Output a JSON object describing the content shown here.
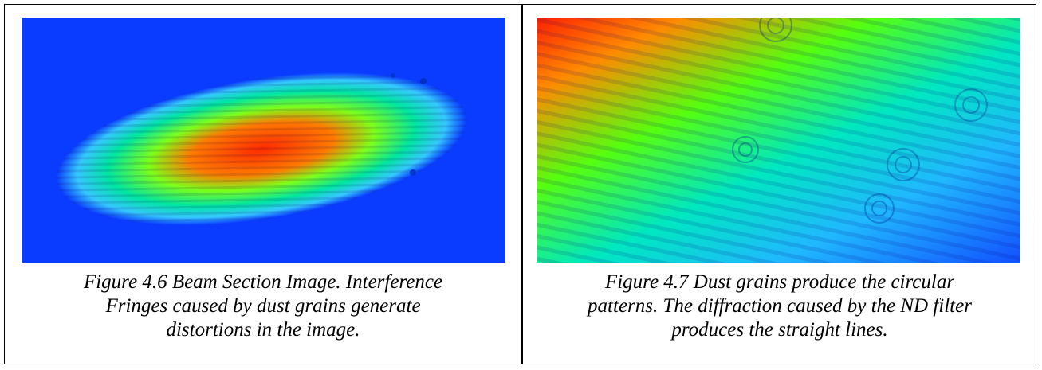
{
  "figures": [
    {
      "caption_lines": [
        "Figure 4.6 Beam Section Image. Interference",
        "Fringes caused by dust grains generate",
        "distortions in the image."
      ]
    },
    {
      "caption_lines": [
        "Figure 4.7 Dust grains produce the circular",
        "patterns. The diffraction caused by the ND filter",
        "produces the straight lines."
      ]
    }
  ]
}
